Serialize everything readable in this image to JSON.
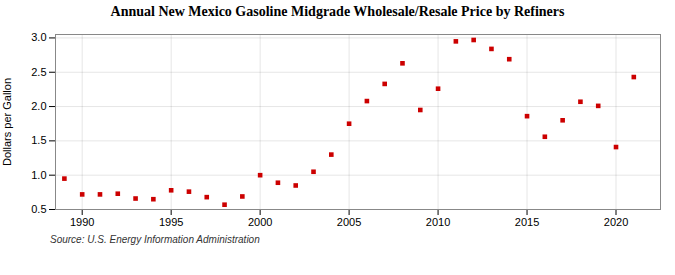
{
  "chart_data": {
    "type": "scatter",
    "title": "Annual New Mexico Gasoline Midgrade Wholesale/Resale Price by Refiners",
    "ylabel": "Dollars per Gallon",
    "source": "Source: U.S. Energy Information Administration",
    "x": [
      1989,
      1990,
      1991,
      1992,
      1993,
      1994,
      1995,
      1996,
      1997,
      1998,
      1999,
      2000,
      2001,
      2002,
      2003,
      2004,
      2005,
      2006,
      2007,
      2008,
      2009,
      2010,
      2011,
      2012,
      2013,
      2014,
      2015,
      2016,
      2017,
      2018,
      2019,
      2020,
      2021
    ],
    "values": [
      0.95,
      0.72,
      0.72,
      0.73,
      0.66,
      0.65,
      0.78,
      0.76,
      0.68,
      0.57,
      0.69,
      1.0,
      0.89,
      0.85,
      1.05,
      1.3,
      1.75,
      2.08,
      2.33,
      2.63,
      1.95,
      2.26,
      2.95,
      2.97,
      2.84,
      2.69,
      1.86,
      1.56,
      1.8,
      2.07,
      2.01,
      1.41,
      2.43
    ],
    "color": "#cc0000",
    "marker": "square",
    "xlim": [
      1988.5,
      2022.5
    ],
    "ylim": [
      0.5,
      3.05
    ],
    "xticks": [
      1990,
      1995,
      2000,
      2005,
      2010,
      2015,
      2020
    ],
    "yticks": [
      0.5,
      {
        "value": 1.0,
        "label": "1.0"
      },
      1.5,
      {
        "value": 2.0,
        "label": "2.0"
      },
      2.5,
      {
        "value": 3.0,
        "label": "3.0"
      }
    ],
    "grid": true
  }
}
